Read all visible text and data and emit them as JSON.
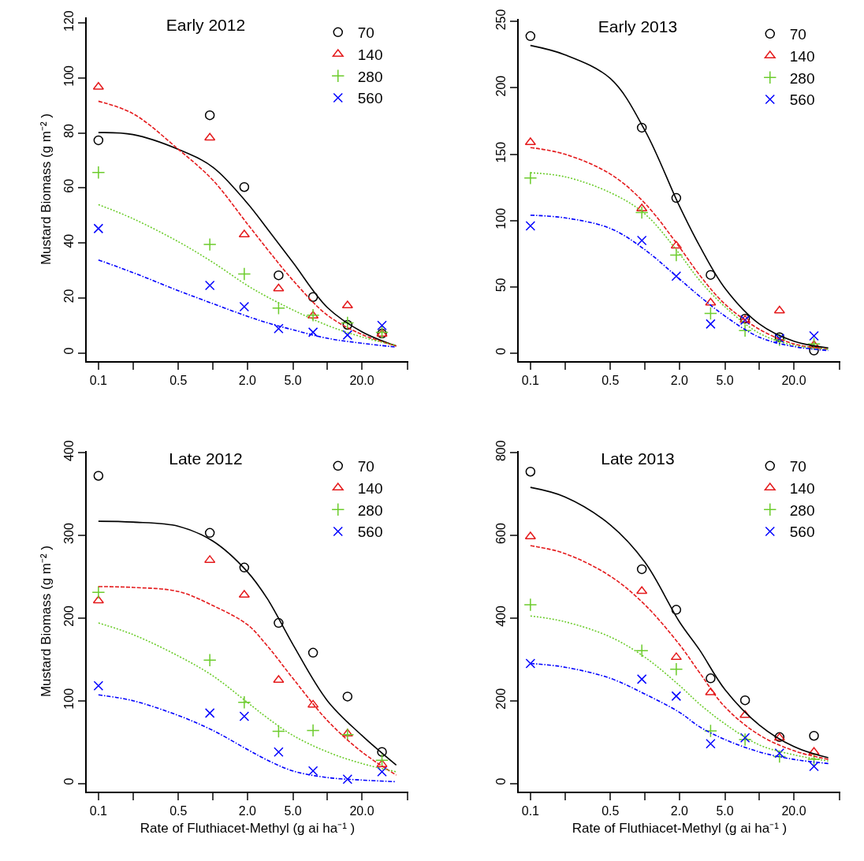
{
  "chart_data": [
    {
      "type": "scatter",
      "title": "Early 2012",
      "ylabel": "Mustard Biomass (g m⁻² )",
      "log": "x",
      "grid": false,
      "legend": "top right",
      "xlim": [
        0.079,
        51
      ],
      "xticks": [
        {
          "value": 0.1,
          "label": "0.1"
        },
        {
          "value": 0.2,
          "label": null
        },
        {
          "value": 0.5,
          "label": "0.5"
        },
        {
          "value": 1,
          "label": null
        },
        {
          "value": 2,
          "label": "2.0"
        },
        {
          "value": 5,
          "label": "5.0"
        },
        {
          "value": 10,
          "label": null
        },
        {
          "value": 20,
          "label": "20.0"
        },
        {
          "value": 50,
          "label": null
        }
      ],
      "ylim": [
        -3,
        122
      ],
      "yticks": [
        0,
        20,
        40,
        60,
        80,
        100,
        120
      ],
      "series": [
        {
          "name": "70",
          "type": "scatter",
          "marker": "circle",
          "color": "#000000",
          "x": [
            0.1,
            0.94,
            1.88,
            3.75,
            7.5,
            15,
            30
          ],
          "values": [
            77.3,
            86.4,
            60.3,
            28.2,
            20.3,
            10.2,
            7.0
          ]
        },
        {
          "name": "140",
          "type": "scatter",
          "marker": "triangle",
          "color": "#e41a1c",
          "x": [
            0.1,
            0.94,
            1.88,
            3.75,
            7.5,
            15,
            30
          ],
          "values": [
            96.7,
            78.2,
            43,
            23.4,
            13.5,
            17.2,
            6.9
          ]
        },
        {
          "name": "280",
          "type": "scatter",
          "marker": "cross",
          "color": "#6ccc2c",
          "x": [
            0.1,
            0.94,
            1.88,
            3.75,
            7.5,
            15,
            30
          ],
          "values": [
            65.6,
            39.4,
            28.7,
            16.3,
            13.7,
            10.9,
            7.5
          ]
        },
        {
          "name": "560",
          "type": "scatter",
          "marker": "x",
          "color": "#0000ff",
          "x": [
            0.1,
            0.94,
            1.88,
            3.75,
            7.5,
            15,
            30
          ],
          "values": [
            45.2,
            24.5,
            16.8,
            8.8,
            7.5,
            6.5,
            10
          ]
        },
        {
          "type": "line",
          "line_style": "solid",
          "color": "#000000",
          "x": [
            0.1,
            0.2,
            0.5,
            1,
            2,
            3,
            5,
            10,
            20,
            40
          ],
          "values": [
            80.1,
            79.4,
            74,
            67.5,
            54.4,
            45,
            32.9,
            16.5,
            7.7,
            2.5
          ]
        },
        {
          "type": "line",
          "line_style": "dashed",
          "color": "#e41a1c",
          "x": [
            0.1,
            0.2,
            0.5,
            1,
            2,
            3,
            5,
            10,
            20,
            40
          ],
          "values": [
            91.5,
            87,
            74,
            62.8,
            46.9,
            37.6,
            26.4,
            13.7,
            6.7,
            2.5
          ]
        },
        {
          "type": "line",
          "line_style": "dotted",
          "color": "#6ccc2c",
          "x": [
            0.1,
            0.2,
            0.5,
            1,
            2,
            3,
            5,
            10,
            20,
            40
          ],
          "values": [
            53.9,
            48.8,
            40.4,
            32.9,
            24.5,
            20.3,
            15.6,
            10,
            5.8,
            2.7
          ]
        },
        {
          "type": "line",
          "line_style": "dashdot",
          "color": "#0000ff",
          "x": [
            0.1,
            0.2,
            0.5,
            1,
            2,
            3,
            5,
            10,
            20,
            40
          ],
          "values": [
            33.8,
            29.2,
            22.6,
            17.9,
            13.3,
            10.9,
            8.4,
            5.3,
            3.5,
            2.1
          ]
        }
      ]
    },
    {
      "type": "scatter",
      "title": "Early 2013",
      "log": "x",
      "grid": false,
      "legend": "top right",
      "xlim": [
        0.079,
        51
      ],
      "xticks": [
        {
          "value": 0.1,
          "label": "0.1"
        },
        {
          "value": 0.2,
          "label": null
        },
        {
          "value": 0.5,
          "label": "0.5"
        },
        {
          "value": 1,
          "label": null
        },
        {
          "value": 2,
          "label": "2.0"
        },
        {
          "value": 5,
          "label": "5.0"
        },
        {
          "value": 10,
          "label": null
        },
        {
          "value": 20,
          "label": "20.0"
        },
        {
          "value": 50,
          "label": null
        }
      ],
      "ylim": [
        -6,
        252
      ],
      "yticks": [
        0,
        50,
        100,
        150,
        200,
        250
      ],
      "series": [
        {
          "name": "70",
          "type": "scatter",
          "marker": "circle",
          "color": "#000000",
          "x": [
            0.1,
            0.94,
            1.88,
            3.75,
            7.5,
            15,
            30
          ],
          "values": [
            239,
            170,
            117,
            59,
            26,
            12,
            2
          ]
        },
        {
          "name": "140",
          "type": "scatter",
          "marker": "triangle",
          "color": "#e41a1c",
          "x": [
            0.1,
            0.94,
            1.88,
            3.75,
            7.5,
            15,
            30
          ],
          "values": [
            159,
            109,
            81,
            38,
            25,
            32,
            6
          ]
        },
        {
          "name": "280",
          "type": "scatter",
          "marker": "cross",
          "color": "#6ccc2c",
          "x": [
            0.1,
            0.94,
            1.88,
            3.75,
            7.5,
            15,
            30
          ],
          "values": [
            132,
            106,
            74,
            30,
            17,
            10,
            7
          ]
        },
        {
          "name": "560",
          "type": "scatter",
          "marker": "x",
          "color": "#0000ff",
          "x": [
            0.1,
            0.94,
            1.88,
            3.75,
            7.5,
            15,
            30
          ],
          "values": [
            96,
            85,
            58,
            22,
            25,
            11,
            13
          ]
        },
        {
          "type": "line",
          "line_style": "solid",
          "color": "#000000",
          "x": [
            0.1,
            0.2,
            0.5,
            1,
            2,
            3,
            5,
            10,
            20,
            40
          ],
          "values": [
            232,
            225,
            207,
            168,
            111,
            81,
            49,
            22,
            9,
            4
          ]
        },
        {
          "type": "line",
          "line_style": "dashed",
          "color": "#e41a1c",
          "x": [
            0.1,
            0.2,
            0.5,
            1,
            2,
            3,
            5,
            10,
            20,
            40
          ],
          "values": [
            155,
            150,
            135,
            113,
            80,
            59,
            37,
            18,
            7,
            3
          ]
        },
        {
          "type": "line",
          "line_style": "dotted",
          "color": "#6ccc2c",
          "x": [
            0.1,
            0.2,
            0.5,
            1,
            2,
            3,
            5,
            10,
            20,
            40
          ],
          "values": [
            136,
            133,
            121,
            105,
            75,
            55,
            35,
            15,
            6,
            3
          ]
        },
        {
          "type": "line",
          "line_style": "dashdot",
          "color": "#0000ff",
          "x": [
            0.1,
            0.2,
            0.5,
            1,
            2,
            3,
            5,
            10,
            20,
            40
          ],
          "values": [
            104,
            102,
            94,
            78,
            56,
            43,
            28,
            12,
            5,
            2
          ]
        }
      ]
    },
    {
      "type": "scatter",
      "title": "Late 2012",
      "ylabel": "Mustard Biomass (g m⁻² )",
      "xlabel": "Rate of Fluthiacet-Methyl (g ai ha⁻¹ )",
      "log": "x",
      "grid": false,
      "legend": "top right",
      "xlim": [
        0.079,
        51
      ],
      "xticks": [
        {
          "value": 0.1,
          "label": "0.1"
        },
        {
          "value": 0.2,
          "label": null
        },
        {
          "value": 0.5,
          "label": "0.5"
        },
        {
          "value": 1,
          "label": null
        },
        {
          "value": 2,
          "label": "2.0"
        },
        {
          "value": 5,
          "label": "5.0"
        },
        {
          "value": 10,
          "label": null
        },
        {
          "value": 20,
          "label": "20.0"
        },
        {
          "value": 50,
          "label": null
        }
      ],
      "ylim": [
        -10,
        402
      ],
      "yticks": [
        0,
        100,
        200,
        300,
        400
      ],
      "series": [
        {
          "name": "70",
          "type": "scatter",
          "marker": "circle",
          "color": "#000000",
          "x": [
            0.1,
            0.94,
            1.88,
            3.75,
            7.5,
            15,
            30
          ],
          "values": [
            372,
            303,
            261,
            194,
            158,
            105,
            38
          ]
        },
        {
          "name": "140",
          "type": "scatter",
          "marker": "triangle",
          "color": "#e41a1c",
          "x": [
            0.1,
            0.94,
            1.88,
            3.75,
            7.5,
            15,
            30
          ],
          "values": [
            221,
            270,
            228,
            125,
            95,
            60,
            23
          ]
        },
        {
          "name": "280",
          "type": "scatter",
          "marker": "cross",
          "color": "#6ccc2c",
          "x": [
            0.1,
            0.94,
            1.88,
            3.75,
            7.5,
            15,
            30
          ],
          "values": [
            231,
            149,
            98,
            63,
            64,
            59,
            28
          ]
        },
        {
          "name": "560",
          "type": "scatter",
          "marker": "x",
          "color": "#0000ff",
          "x": [
            0.1,
            0.94,
            1.88,
            3.75,
            7.5,
            15,
            30
          ],
          "values": [
            118,
            85,
            81,
            38,
            15,
            5,
            14
          ]
        },
        {
          "type": "line",
          "line_style": "solid",
          "color": "#000000",
          "x": [
            0.1,
            0.2,
            0.5,
            1,
            2,
            3,
            5,
            10,
            20,
            40
          ],
          "values": [
            317,
            316,
            311,
            293,
            256,
            223,
            168,
            100,
            58,
            22
          ]
        },
        {
          "type": "line",
          "line_style": "dashed",
          "color": "#e41a1c",
          "x": [
            0.1,
            0.2,
            0.5,
            1,
            2,
            3,
            5,
            10,
            20,
            40
          ],
          "values": [
            238,
            237,
            232,
            215,
            192,
            166,
            127,
            76,
            38,
            10
          ]
        },
        {
          "type": "line",
          "line_style": "dotted",
          "color": "#6ccc2c",
          "x": [
            0.1,
            0.2,
            0.5,
            1,
            2,
            3,
            5,
            10,
            20,
            40
          ],
          "values": [
            194,
            180,
            154,
            130,
            98,
            79,
            58,
            38,
            24,
            14
          ]
        },
        {
          "type": "line",
          "line_style": "dashdot",
          "color": "#0000ff",
          "x": [
            0.1,
            0.2,
            0.5,
            1,
            2,
            3,
            5,
            10,
            20,
            40
          ],
          "values": [
            107,
            100,
            82,
            64,
            41,
            28,
            15,
            7,
            4,
            2
          ]
        }
      ]
    },
    {
      "type": "scatter",
      "title": "Late 2013",
      "xlabel": "Rate of Fluthiacet-Methyl (g ai ha⁻¹ )",
      "log": "x",
      "grid": false,
      "legend": "top right",
      "xlim": [
        0.079,
        51
      ],
      "xticks": [
        {
          "value": 0.1,
          "label": "0.1"
        },
        {
          "value": 0.2,
          "label": null
        },
        {
          "value": 0.5,
          "label": "0.5"
        },
        {
          "value": 1,
          "label": null
        },
        {
          "value": 2,
          "label": "2.0"
        },
        {
          "value": 5,
          "label": "5.0"
        },
        {
          "value": 10,
          "label": null
        },
        {
          "value": 20,
          "label": "20.0"
        },
        {
          "value": 50,
          "label": null
        }
      ],
      "ylim": [
        -20,
        804
      ],
      "yticks": [
        0,
        200,
        400,
        600,
        800
      ],
      "series": [
        {
          "name": "70",
          "type": "scatter",
          "marker": "circle",
          "color": "#000000",
          "x": [
            0.1,
            0.94,
            1.88,
            3.75,
            7.5,
            15,
            30
          ],
          "values": [
            754,
            518,
            420,
            254,
            201,
            112,
            115
          ]
        },
        {
          "name": "140",
          "type": "scatter",
          "marker": "triangle",
          "color": "#e41a1c",
          "x": [
            0.1,
            0.94,
            1.88,
            3.75,
            7.5,
            15,
            30
          ],
          "values": [
            597,
            465,
            305,
            220,
            165,
            110,
            76
          ]
        },
        {
          "name": "280",
          "type": "scatter",
          "marker": "cross",
          "color": "#6ccc2c",
          "x": [
            0.1,
            0.94,
            1.88,
            3.75,
            7.5,
            15,
            30
          ],
          "values": [
            432,
            321,
            276,
            127,
            106,
            65,
            58
          ]
        },
        {
          "name": "560",
          "type": "scatter",
          "marker": "x",
          "color": "#0000ff",
          "x": [
            0.1,
            0.94,
            1.88,
            3.75,
            7.5,
            15,
            30
          ],
          "values": [
            290,
            252,
            211,
            96,
            110,
            73,
            41
          ]
        },
        {
          "type": "line",
          "line_style": "solid",
          "color": "#000000",
          "x": [
            0.1,
            0.2,
            0.5,
            1,
            2,
            3,
            5,
            10,
            20,
            40
          ],
          "values": [
            716,
            693,
            625,
            535,
            391,
            323,
            227,
            141,
            89,
            62
          ]
        },
        {
          "type": "line",
          "line_style": "dashed",
          "color": "#e41a1c",
          "x": [
            0.1,
            0.2,
            0.5,
            1,
            2,
            3,
            5,
            10,
            20,
            40
          ],
          "values": [
            575,
            556,
            501,
            432,
            336,
            268,
            185,
            117,
            79,
            58
          ]
        },
        {
          "type": "line",
          "line_style": "dotted",
          "color": "#6ccc2c",
          "x": [
            0.1,
            0.2,
            0.5,
            1,
            2,
            3,
            5,
            10,
            20,
            40
          ],
          "values": [
            405,
            391,
            354,
            305,
            237,
            192,
            144,
            93,
            69,
            54
          ]
        },
        {
          "type": "line",
          "line_style": "dashdot",
          "color": "#0000ff",
          "x": [
            0.1,
            0.2,
            0.5,
            1,
            2,
            3,
            5,
            10,
            20,
            40
          ],
          "values": [
            290,
            281,
            254,
            216,
            172,
            137,
            106,
            76,
            58,
            48
          ]
        }
      ]
    }
  ]
}
